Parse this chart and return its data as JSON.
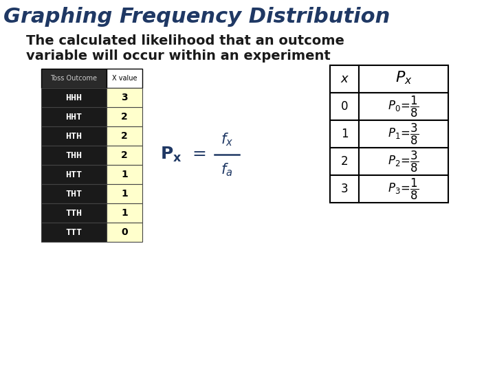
{
  "title": "Graphing Frequency Distribution",
  "subtitle_line1": "The calculated likelihood that an outcome",
  "subtitle_line2": "variable will occur within an experiment",
  "background_color": "#ffffff",
  "title_color": "#1F3864",
  "subtitle_color": "#1a1a1a",
  "left_table": {
    "header": [
      "Toss Outcome",
      "X value"
    ],
    "rows": [
      [
        "HHH",
        "3"
      ],
      [
        "HHT",
        "2"
      ],
      [
        "HTH",
        "2"
      ],
      [
        "THH",
        "2"
      ],
      [
        "HTT",
        "1"
      ],
      [
        "THT",
        "1"
      ],
      [
        "TTH",
        "1"
      ],
      [
        "TTT",
        "0"
      ]
    ],
    "row_bg": "#1a1a1a",
    "row_fg": "#ffffff",
    "xval_bg": "#ffffcc",
    "xval_fg": "#000000",
    "header_bg": "#d3d3d3",
    "header_fg": "#000000"
  },
  "formula_color": "#1F3864",
  "right_table_x_color": "#000000",
  "right_table_p_color": "#000000"
}
